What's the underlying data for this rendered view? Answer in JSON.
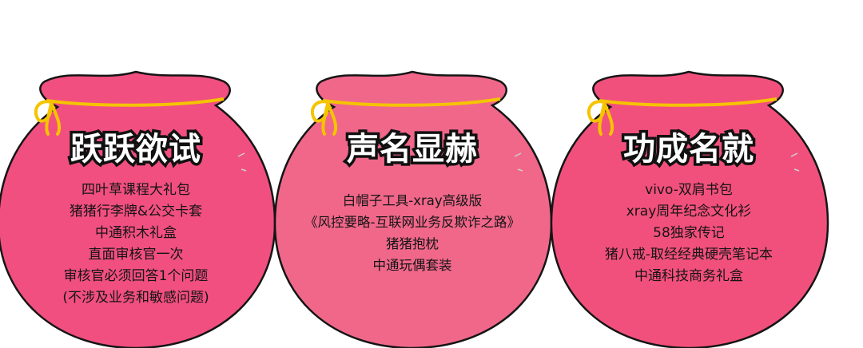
{
  "colors": {
    "bag_left": "#f14f80",
    "bag_middle": "#f0678a",
    "bag_right": "#f2507c",
    "outline": "#151515",
    "string": "#f5c400"
  },
  "bags": [
    {
      "title": "跃跃欲试",
      "items": [
        "四叶草课程大礼包",
        "猪猪行李牌&公交卡套",
        "中通积木礼盒",
        "直面审核官一次",
        "审核官必须回答1个问题",
        "(不涉及业务和敏感问题)"
      ]
    },
    {
      "title": "声名显赫",
      "items": [
        "白帽子工具-xray高级版",
        "《风控要略-互联网业务反欺诈之路》",
        "猪猪抱枕",
        "中通玩偶套装"
      ]
    },
    {
      "title": "功成名就",
      "items": [
        "vivo-双肩书包",
        "xray周年纪念文化衫",
        "58独家传记",
        "猪八戒-取经经典硬壳笔记本",
        "中通科技商务礼盒"
      ]
    }
  ]
}
